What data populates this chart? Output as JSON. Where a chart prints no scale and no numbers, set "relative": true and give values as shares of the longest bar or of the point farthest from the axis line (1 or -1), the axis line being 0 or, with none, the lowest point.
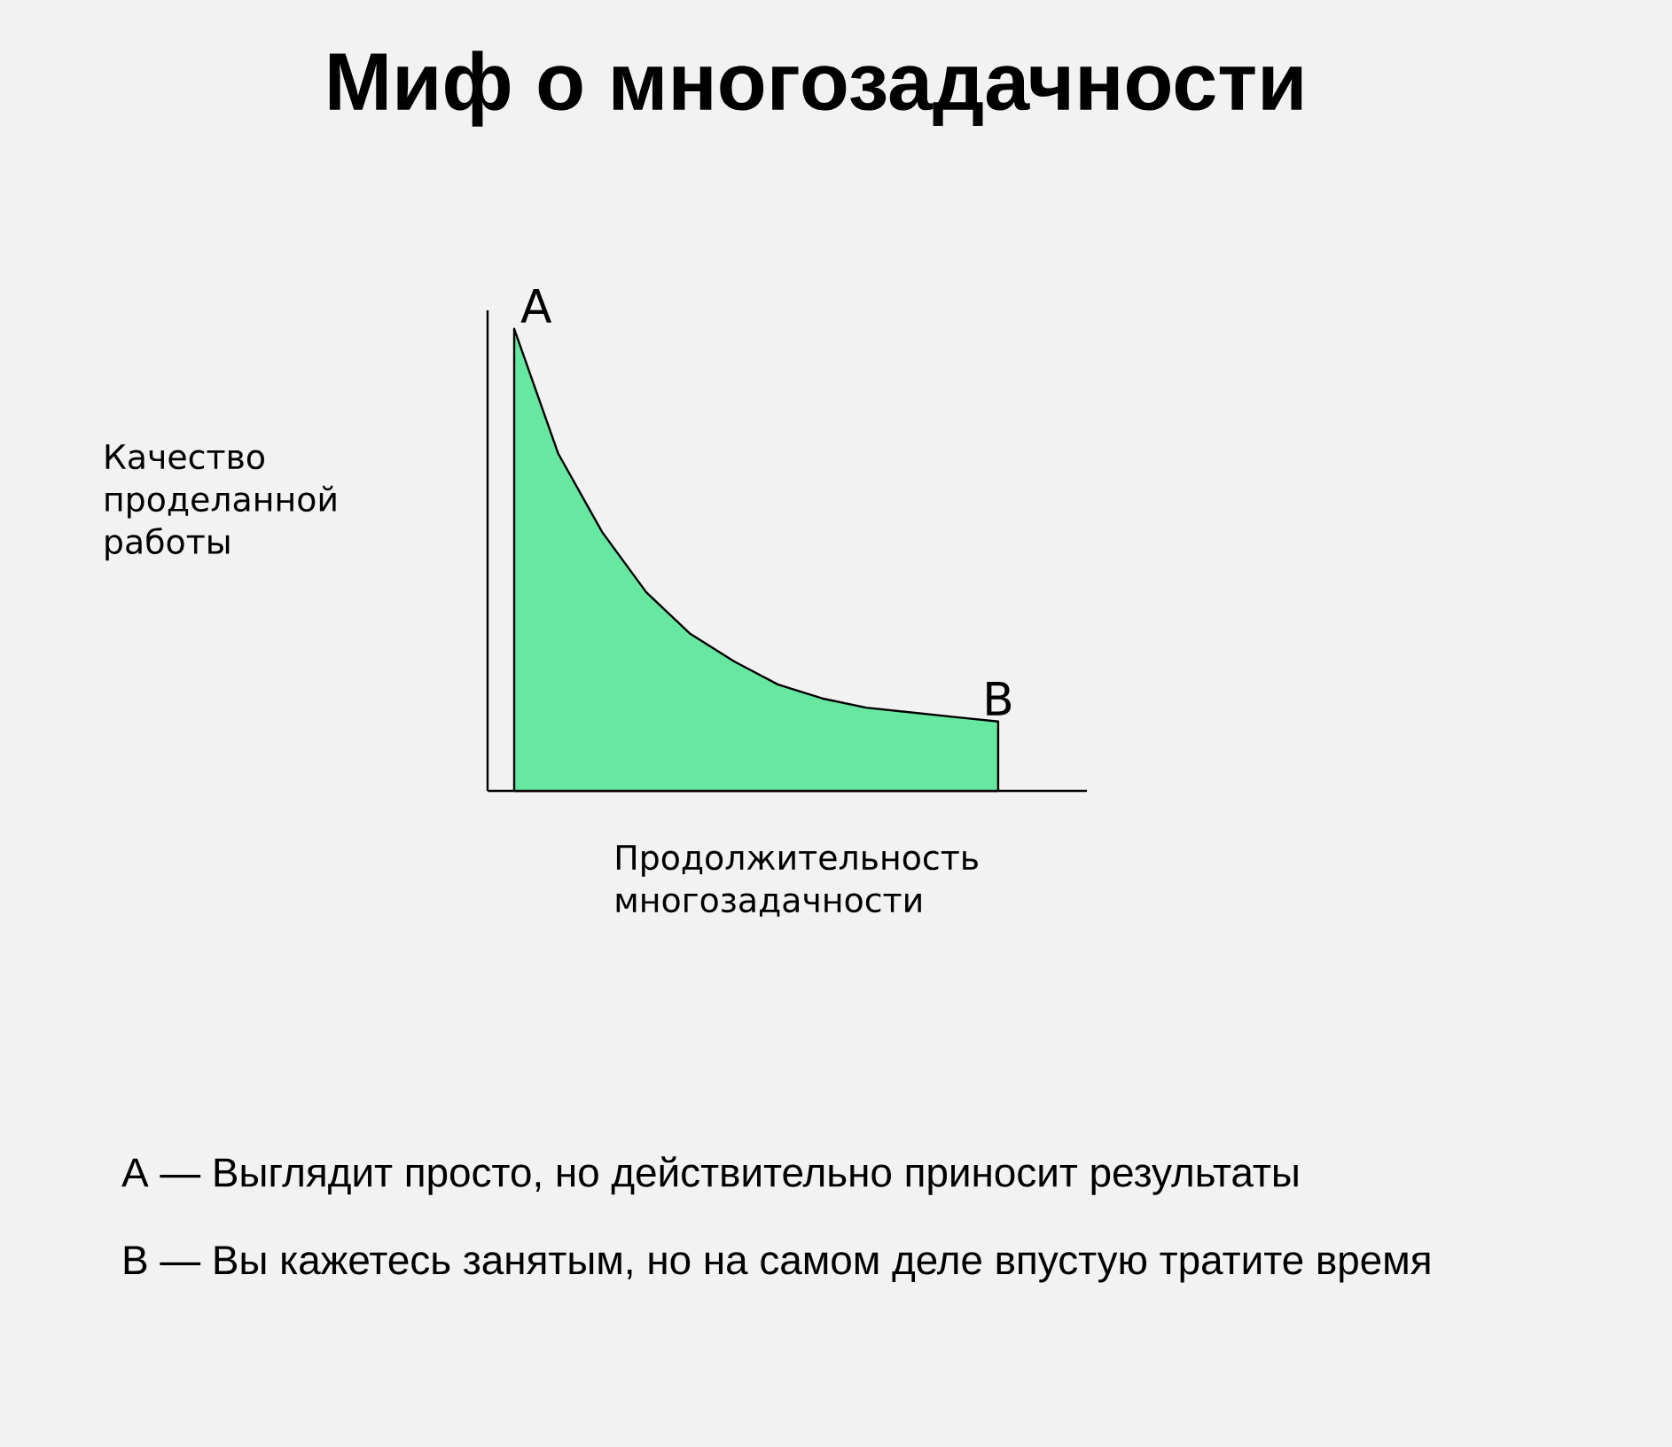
{
  "chart_data": {
    "type": "area",
    "relative": true,
    "title": "Миф о многозадачности",
    "ylabel": "Качество проделанной работы",
    "xlabel": "Продолжительность многозадачности",
    "categories": [
      null,
      null,
      null,
      null,
      null,
      null,
      null,
      null,
      null,
      null,
      null,
      null
    ],
    "series": [
      {
        "color": "#66e8a0",
        "values": [
          1,
          0.73,
          0.56,
          0.43,
          0.34,
          0.28,
          0.23,
          0.2,
          0.18,
          0.17,
          0.16,
          0.15
        ]
      }
    ],
    "annotations": [
      "A",
      "B",
      "A — Выглядит просто, но действительно приносит результаты",
      "B — Вы кажетесь занятым, но на самом деле впустую тратите время"
    ]
  }
}
